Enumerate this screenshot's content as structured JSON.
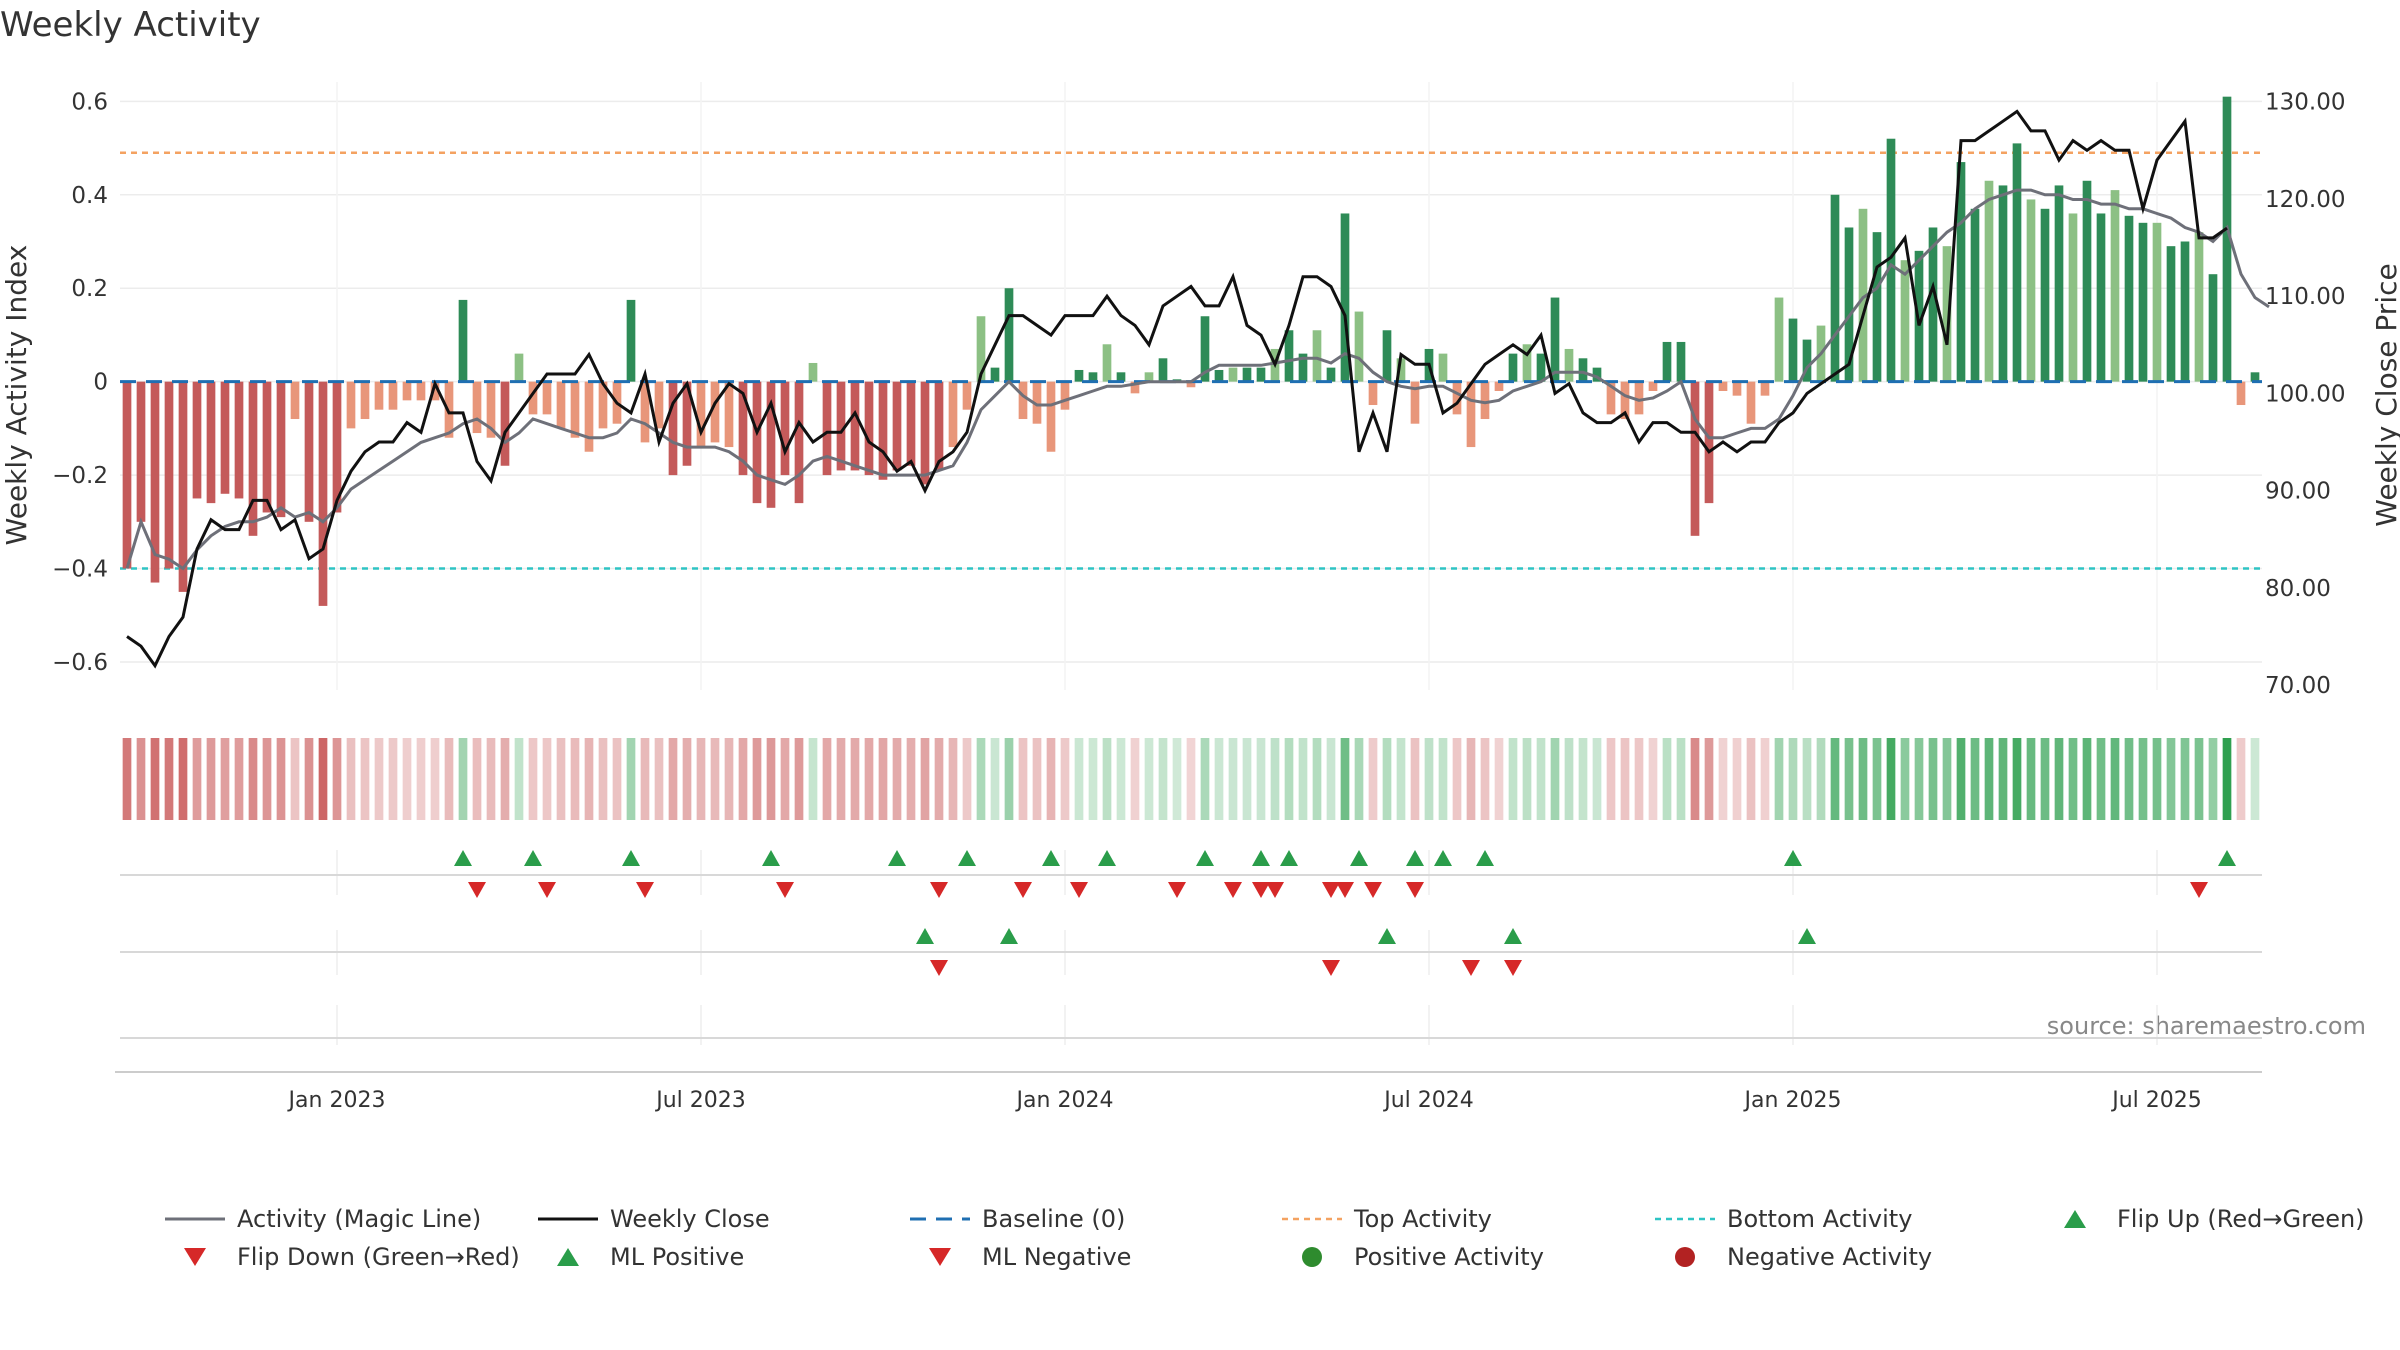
{
  "chart_data": {
    "type": "bar",
    "title": "Weekly Activity",
    "ylabel_left": "Weekly Activity Index",
    "ylabel_right": "Weekly Close Price",
    "source": "source: sharemaestro.com",
    "y_left_range": [
      -0.66,
      0.62
    ],
    "y_left_ticks": [
      {
        "v": 0.6,
        "label": "0.6"
      },
      {
        "v": 0.4,
        "label": "0.4"
      },
      {
        "v": 0.2,
        "label": "0.2"
      },
      {
        "v": 0.0,
        "label": "0"
      },
      {
        "v": -0.2,
        "label": "−0.2"
      },
      {
        "v": -0.4,
        "label": "−0.4"
      },
      {
        "v": -0.6,
        "label": "−0.6"
      }
    ],
    "y_right_range": [
      69.5,
      131
    ],
    "y_right_ticks": [
      {
        "v": 130,
        "label": "130.00"
      },
      {
        "v": 120,
        "label": "120.00"
      },
      {
        "v": 110,
        "label": "110.00"
      },
      {
        "v": 100,
        "label": "100.00"
      },
      {
        "v": 90,
        "label": "90.00"
      },
      {
        "v": 80,
        "label": "80.00"
      },
      {
        "v": 70,
        "label": "70.00"
      }
    ],
    "x_ticks": [
      {
        "week": 15,
        "label": "Jan 2023"
      },
      {
        "week": 41,
        "label": "Jul 2023"
      },
      {
        "week": 67,
        "label": "Jan 2024"
      },
      {
        "week": 93,
        "label": "Jul 2024"
      },
      {
        "week": 119,
        "label": "Jan 2025"
      },
      {
        "week": 145,
        "label": "Jul 2025"
      }
    ],
    "top_activity": 0.49,
    "bottom_activity": -0.4,
    "baseline": 0,
    "activity": [
      -0.4,
      -0.3,
      -0.43,
      -0.4,
      -0.45,
      -0.25,
      -0.26,
      -0.24,
      -0.25,
      -0.33,
      -0.28,
      -0.29,
      -0.08,
      -0.3,
      -0.48,
      -0.28,
      -0.1,
      -0.08,
      -0.06,
      -0.06,
      -0.04,
      -0.04,
      -0.04,
      -0.12,
      0.175,
      -0.11,
      -0.12,
      -0.18,
      0.06,
      -0.07,
      -0.07,
      -0.1,
      -0.12,
      -0.15,
      -0.1,
      -0.09,
      0.175,
      -0.13,
      -0.1,
      -0.2,
      -0.18,
      -0.14,
      -0.13,
      -0.14,
      -0.2,
      -0.26,
      -0.27,
      -0.2,
      -0.26,
      0.04,
      -0.2,
      -0.19,
      -0.19,
      -0.2,
      -0.21,
      -0.19,
      -0.18,
      -0.22,
      -0.19,
      -0.14,
      -0.06,
      0.14,
      0.03,
      0.2,
      -0.08,
      -0.09,
      -0.15,
      -0.06,
      0.025,
      0.02,
      0.08,
      0.02,
      -0.025,
      0.02,
      0.05,
      0.005,
      -0.012,
      0.14,
      0.025,
      0.03,
      0.03,
      0.03,
      0.07,
      0.11,
      0.06,
      0.11,
      0.03,
      0.36,
      0.15,
      -0.05,
      0.11,
      0.05,
      -0.09,
      0.07,
      0.06,
      -0.07,
      -0.14,
      -0.08,
      -0.02,
      0.06,
      0.08,
      0.06,
      0.18,
      0.07,
      0.05,
      0.03,
      -0.07,
      -0.08,
      -0.07,
      -0.02,
      0.085,
      0.085,
      -0.33,
      -0.26,
      -0.02,
      -0.03,
      -0.09,
      -0.03,
      0.18,
      0.135,
      0.09,
      0.12,
      0.4,
      0.33,
      0.37,
      0.32,
      0.52,
      0.26,
      0.28,
      0.33,
      0.29,
      0.47,
      0.37,
      0.43,
      0.42,
      0.51,
      0.39,
      0.37,
      0.42,
      0.36,
      0.43,
      0.36,
      0.41,
      0.355,
      0.34,
      0.34,
      0.29,
      0.3,
      0.32,
      0.23,
      0.61,
      -0.05,
      0.02
    ],
    "magic_line": [
      -0.4,
      -0.3,
      -0.37,
      -0.38,
      -0.4,
      -0.36,
      -0.33,
      -0.31,
      -0.3,
      -0.3,
      -0.29,
      -0.27,
      -0.29,
      -0.28,
      -0.3,
      -0.27,
      -0.23,
      -0.21,
      -0.19,
      -0.17,
      -0.15,
      -0.13,
      -0.12,
      -0.11,
      -0.09,
      -0.08,
      -0.1,
      -0.13,
      -0.11,
      -0.08,
      -0.09,
      -0.1,
      -0.11,
      -0.12,
      -0.12,
      -0.11,
      -0.08,
      -0.09,
      -0.11,
      -0.13,
      -0.14,
      -0.14,
      -0.14,
      -0.15,
      -0.17,
      -0.2,
      -0.21,
      -0.22,
      -0.2,
      -0.17,
      -0.16,
      -0.17,
      -0.18,
      -0.19,
      -0.2,
      -0.2,
      -0.2,
      -0.2,
      -0.19,
      -0.18,
      -0.13,
      -0.06,
      -0.03,
      0.0,
      -0.03,
      -0.05,
      -0.05,
      -0.04,
      -0.03,
      -0.02,
      -0.01,
      -0.01,
      -0.005,
      0.0,
      0.0,
      0.0,
      0.0,
      0.02,
      0.035,
      0.035,
      0.035,
      0.035,
      0.04,
      0.045,
      0.05,
      0.05,
      0.04,
      0.06,
      0.05,
      0.02,
      0.0,
      -0.01,
      -0.015,
      -0.01,
      -0.01,
      -0.025,
      -0.04,
      -0.045,
      -0.04,
      -0.02,
      -0.01,
      0.0,
      0.02,
      0.02,
      0.02,
      0.01,
      -0.01,
      -0.03,
      -0.04,
      -0.035,
      -0.02,
      0.0,
      -0.08,
      -0.12,
      -0.12,
      -0.11,
      -0.1,
      -0.1,
      -0.08,
      -0.03,
      0.03,
      0.06,
      0.1,
      0.14,
      0.18,
      0.2,
      0.25,
      0.23,
      0.26,
      0.29,
      0.32,
      0.34,
      0.37,
      0.39,
      0.4,
      0.41,
      0.41,
      0.4,
      0.4,
      0.39,
      0.39,
      0.38,
      0.38,
      0.37,
      0.37,
      0.36,
      0.35,
      0.33,
      0.32,
      0.3,
      0.33,
      0.23,
      0.18,
      0.16
    ],
    "weekly_close": [
      75,
      74,
      72,
      75,
      77,
      84,
      87,
      86,
      86,
      89,
      89,
      86,
      87,
      83,
      84,
      89,
      92,
      94,
      95,
      95,
      97,
      96,
      101,
      98,
      98,
      93,
      91,
      96,
      98,
      100,
      102,
      102,
      102,
      104,
      101,
      99,
      98,
      102,
      95,
      99,
      101,
      96,
      99,
      101,
      100,
      96,
      99,
      94,
      97,
      95,
      96,
      96,
      98,
      95,
      94,
      92,
      93,
      90,
      93,
      94,
      96,
      102,
      105,
      108,
      108,
      107,
      106,
      108,
      108,
      108,
      110,
      108,
      107,
      105,
      109,
      110,
      111,
      109,
      109,
      112,
      107,
      106,
      103,
      107,
      112,
      112,
      111,
      108,
      94,
      98,
      94,
      104,
      103,
      103,
      98,
      99,
      101,
      103,
      104,
      105,
      104,
      106,
      100,
      101,
      98,
      97,
      97,
      98,
      95,
      97,
      97,
      96,
      96,
      94,
      95,
      94,
      95,
      95,
      97,
      98,
      100,
      101,
      102,
      103,
      108,
      113,
      114,
      116,
      107,
      111,
      105,
      126,
      126,
      127,
      128,
      129,
      127,
      127,
      124,
      126,
      125,
      126,
      125,
      125,
      119,
      124,
      126,
      128,
      116,
      116,
      117
    ]
  },
  "events": {
    "flip_up": [
      24,
      29,
      36,
      46,
      55,
      60,
      66,
      70,
      77,
      81,
      83,
      88,
      92,
      94,
      97,
      119,
      150
    ],
    "flip_down": [
      25,
      30,
      37,
      47,
      58,
      64,
      68,
      75,
      79,
      81,
      82,
      86,
      87,
      89,
      92,
      148
    ],
    "ml_positive": [
      57,
      63,
      90,
      99,
      120
    ],
    "ml_negative": [
      58,
      86,
      96,
      99
    ]
  },
  "legend": [
    {
      "key": "magic",
      "label": "Activity (Magic Line)"
    },
    {
      "key": "close",
      "label": "Weekly Close"
    },
    {
      "key": "baseline",
      "label": "Baseline (0)"
    },
    {
      "key": "top",
      "label": "Top Activity"
    },
    {
      "key": "bottom",
      "label": "Bottom Activity"
    },
    {
      "key": "flipup",
      "label": "Flip Up (Red→Green)"
    },
    {
      "key": "flipdown",
      "label": "Flip Down (Green→Red)"
    },
    {
      "key": "mlpos",
      "label": "ML Positive"
    },
    {
      "key": "mlneg",
      "label": "ML Negative"
    },
    {
      "key": "posact",
      "label": "Positive Activity"
    },
    {
      "key": "negact",
      "label": "Negative Activity"
    }
  ],
  "colors": {
    "pos_dark": "#2e8b57",
    "pos_light": "#8cc084",
    "neg_dark": "#c45a5a",
    "neg_light": "#e8967a",
    "magic": "#6e7079",
    "close": "#111111",
    "baseline": "#1f6fb2",
    "top": "#f4a261",
    "bottom": "#2ec4c4",
    "up_marker": "#2a9d4a",
    "down_marker": "#d62828",
    "pos_dot": "#2e8b2e",
    "neg_dot": "#b22222"
  }
}
